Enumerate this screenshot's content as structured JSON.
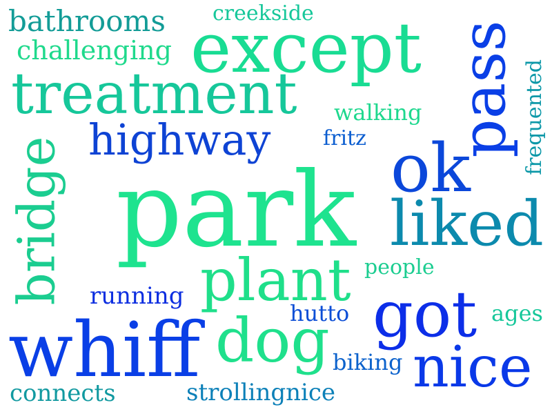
{
  "word_cloud": {
    "words": [
      {
        "text": "park",
        "color": "#1ee38f"
      },
      {
        "text": "except",
        "color": "#19dc93"
      },
      {
        "text": "treatment",
        "color": "#16c79a"
      },
      {
        "text": "whiff",
        "color": "#0a3fe6"
      },
      {
        "text": "pass",
        "color": "#0a3fe6"
      },
      {
        "text": "ok",
        "color": "#0b47da"
      },
      {
        "text": "liked",
        "color": "#0c8aad"
      },
      {
        "text": "got",
        "color": "#0c2ee8"
      },
      {
        "text": "nice",
        "color": "#0a39e8"
      },
      {
        "text": "dog",
        "color": "#1fe08c"
      },
      {
        "text": "plant",
        "color": "#1fdf8a"
      },
      {
        "text": "bridge",
        "color": "#1bcd90"
      },
      {
        "text": "highway",
        "color": "#0e43d4"
      },
      {
        "text": "bathrooms",
        "color": "#139c97"
      },
      {
        "text": "challenging",
        "color": "#1fd98c"
      },
      {
        "text": "creekside",
        "color": "#16c79a"
      },
      {
        "text": "walking",
        "color": "#1ed88e"
      },
      {
        "text": "fritz",
        "color": "#0c5ed0"
      },
      {
        "text": "frequented",
        "color": "#0c98a8"
      },
      {
        "text": "people",
        "color": "#1bcd90"
      },
      {
        "text": "running",
        "color": "#0c2ee0"
      },
      {
        "text": "hutto",
        "color": "#0c4ed6"
      },
      {
        "text": "ages",
        "color": "#16c79a"
      },
      {
        "text": "biking",
        "color": "#0c62cc"
      },
      {
        "text": "connects",
        "color": "#1199a0"
      },
      {
        "text": "strollingnice",
        "color": "#0c80b8"
      }
    ]
  }
}
